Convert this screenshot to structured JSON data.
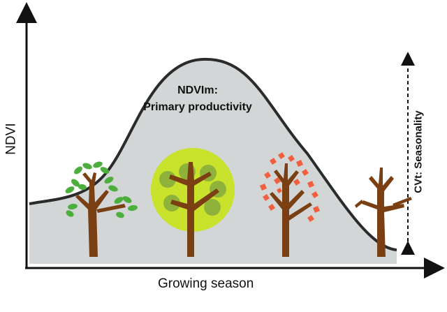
{
  "axes": {
    "y_label": "NDVI",
    "x_label": "Growing season"
  },
  "annotations": {
    "peak_line1": "NDVIm:",
    "peak_line2": "Primary productivity",
    "seasonality": "CVt: Seasonality"
  },
  "colors": {
    "area_fill": "#d2d6d6",
    "curve": "#2b2b2b",
    "trunk": "#7a3f12",
    "spring_leaves": "#4cae3c",
    "summer_crown": "#c9e22b",
    "summer_leaves": "#8fb33a",
    "autumn_leaves": "#f0603e"
  },
  "trees": [
    {
      "name": "spring-tree",
      "season": "spring"
    },
    {
      "name": "summer-tree",
      "season": "summer"
    },
    {
      "name": "autumn-tree",
      "season": "autumn"
    },
    {
      "name": "winter-tree",
      "season": "winter"
    }
  ]
}
